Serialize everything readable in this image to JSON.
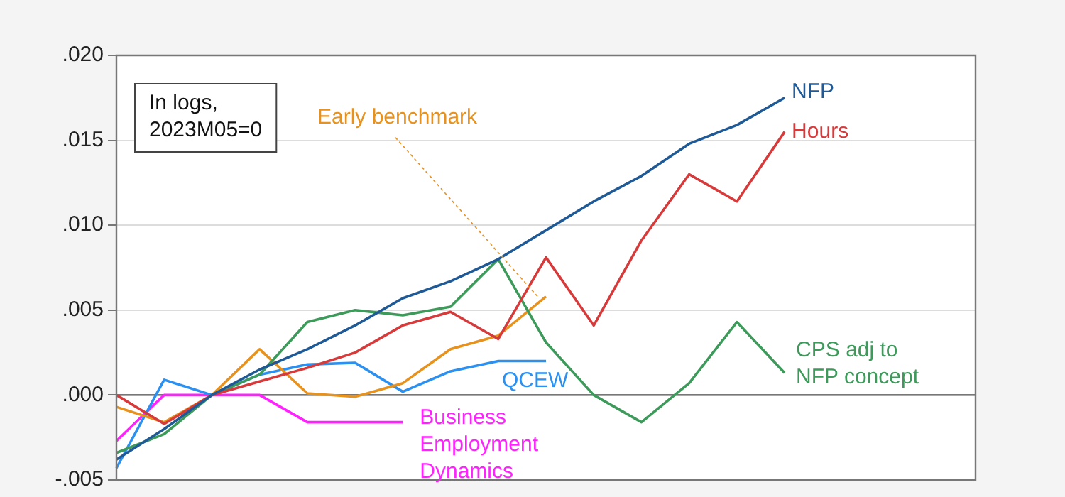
{
  "chart_data": {
    "type": "line",
    "categories": [
      null,
      null,
      null,
      null,
      null,
      null,
      null,
      null,
      null,
      null,
      null,
      null,
      null,
      null,
      null,
      null,
      null,
      null,
      null
    ],
    "series": [
      {
        "name": "NFP",
        "color": "#1f5a96",
        "values": [
          -0.0038,
          -0.002,
          0,
          0.0015,
          0.0027,
          0.0041,
          0.0057,
          0.0067,
          0.008,
          0.0097,
          0.0114,
          0.0129,
          0.0148,
          0.0159,
          0.0175,
          null,
          null,
          null,
          null
        ]
      },
      {
        "name": "Hours",
        "color": "#d63a3a",
        "values": [
          0,
          -0.0017,
          0,
          0.0008,
          0.0016,
          0.0025,
          0.0041,
          0.0049,
          0.0033,
          0.0081,
          0.0041,
          0.0091,
          0.013,
          0.0114,
          0.0155,
          null,
          null,
          null,
          null
        ]
      },
      {
        "name": "CPS adj to NFP concept",
        "color": "#3d9a5a",
        "values": [
          -0.0034,
          -0.0023,
          0,
          0.0012,
          0.0043,
          0.005,
          0.0047,
          0.0052,
          0.008,
          0.0031,
          0,
          -0.0016,
          0.0007,
          0.0043,
          0.0013,
          null,
          null,
          null,
          null
        ]
      },
      {
        "name": "Early benchmark",
        "color": "#e8921e",
        "values": [
          -0.0007,
          -0.0016,
          0,
          0.0027,
          0.0001,
          -0.0001,
          0.0007,
          0.0027,
          0.0035,
          0.0058,
          null,
          null,
          null,
          null,
          null,
          null,
          null,
          null,
          null
        ]
      },
      {
        "name": "QCEW",
        "color": "#2b90f0",
        "values": [
          -0.0043,
          0.0009,
          0,
          0.0012,
          0.0018,
          0.0019,
          0.0002,
          0.0014,
          0.002,
          0.002,
          null,
          null,
          null,
          null,
          null,
          null,
          null,
          null,
          null
        ]
      },
      {
        "name": "Business Employment Dynamics",
        "color": "#ff22ff",
        "values": [
          -0.0027,
          0,
          0,
          0,
          -0.0016,
          -0.0016,
          -0.0016,
          null,
          null,
          null,
          null,
          null,
          null,
          null,
          null,
          null,
          null,
          null,
          null
        ]
      }
    ],
    "ylim": [
      -0.005,
      0.02
    ],
    "yticks": [
      {
        "value": -0.005,
        "label": "-.005"
      },
      {
        "value": 0,
        "label": ".000"
      },
      {
        "value": 0.005,
        "label": ".005"
      },
      {
        "value": 0.01,
        "label": ".010"
      },
      {
        "value": 0.015,
        "label": ".015"
      },
      {
        "value": 0.02,
        "label": ".020"
      }
    ],
    "ref_lines": [
      {
        "axis": "y",
        "value": 0,
        "color": "#555555"
      }
    ],
    "annotations": [
      "In logs, 2023M05=0"
    ],
    "grid": "y",
    "legend": false,
    "tick_labels": "y",
    "marker": "none",
    "line_style": "solid"
  }
}
